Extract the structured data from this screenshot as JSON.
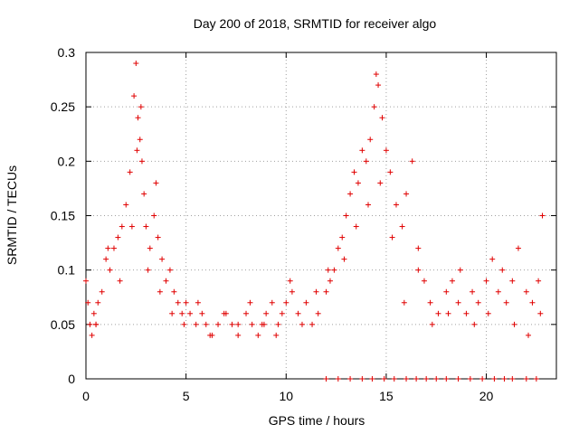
{
  "chart_data": {
    "type": "scatter",
    "title": "Day 200 of 2018, SRMTID for receiver algo",
    "xlabel": "GPS time / hours",
    "ylabel": "SRMTID / TECUs",
    "xlim": [
      0,
      23.5
    ],
    "ylim": [
      0,
      0.3
    ],
    "x_ticks": [
      0,
      5,
      10,
      15,
      20
    ],
    "x_tick_labels": [
      "0",
      "5",
      "10",
      "15",
      "20"
    ],
    "y_ticks": [
      0,
      0.05,
      0.1,
      0.15,
      0.2,
      0.25,
      0.3
    ],
    "y_tick_labels": [
      "0",
      "0.05",
      "0.1",
      "0.15",
      "0.2",
      "0.25",
      "0.3"
    ],
    "grid": true,
    "marker": "+",
    "color": "#e00000",
    "series": [
      {
        "name": "SRMTID",
        "x": [
          0.0,
          0.1,
          0.2,
          0.3,
          0.4,
          0.5,
          0.6,
          0.8,
          1.0,
          1.2,
          1.4,
          1.6,
          1.8,
          2.0,
          2.2,
          2.4,
          2.5,
          2.6,
          2.7,
          2.8,
          2.9,
          3.0,
          3.2,
          3.4,
          3.5,
          3.6,
          3.8,
          4.0,
          4.2,
          4.4,
          4.6,
          4.8,
          5.0,
          5.2,
          5.5,
          5.8,
          6.0,
          6.3,
          6.6,
          7.0,
          7.3,
          7.6,
          8.0,
          8.3,
          8.6,
          8.8,
          9.0,
          9.3,
          9.6,
          9.8,
          10.0,
          10.3,
          10.6,
          11.0,
          11.3,
          11.6,
          12.0,
          12.2,
          12.4,
          12.6,
          12.8,
          13.0,
          13.2,
          13.4,
          13.6,
          13.8,
          14.0,
          14.2,
          14.4,
          14.5,
          14.6,
          14.8,
          15.0,
          15.2,
          15.5,
          15.8,
          16.0,
          16.3,
          16.6,
          16.9,
          17.2,
          17.6,
          18.0,
          18.3,
          18.6,
          19.0,
          19.3,
          19.6,
          20.0,
          20.3,
          20.6,
          21.0,
          21.3,
          21.6,
          22.0,
          22.3,
          22.6,
          22.8,
          0.5,
          1.1,
          1.7,
          2.3,
          2.55,
          2.75,
          3.1,
          3.7,
          4.3,
          4.9,
          5.6,
          6.2,
          6.9,
          7.6,
          8.2,
          8.9,
          9.5,
          10.2,
          10.8,
          11.5,
          12.1,
          12.9,
          13.5,
          14.1,
          14.7,
          15.3,
          15.9,
          16.6,
          17.3,
          18.1,
          18.7,
          19.4,
          20.1,
          20.8,
          21.4,
          22.1,
          22.7,
          12.0,
          12.6,
          13.2,
          13.8,
          14.3,
          14.9,
          15.4,
          16.0,
          16.5,
          17.0,
          17.5,
          18.0,
          18.6,
          19.2,
          19.8,
          20.4,
          20.9,
          21.3,
          22.0,
          22.5
        ],
        "y": [
          0.09,
          0.07,
          0.05,
          0.04,
          0.06,
          0.05,
          0.07,
          0.08,
          0.11,
          0.1,
          0.12,
          0.13,
          0.14,
          0.16,
          0.19,
          0.26,
          0.29,
          0.24,
          0.22,
          0.2,
          0.17,
          0.14,
          0.12,
          0.15,
          0.18,
          0.13,
          0.11,
          0.09,
          0.1,
          0.08,
          0.07,
          0.06,
          0.07,
          0.06,
          0.05,
          0.06,
          0.05,
          0.04,
          0.05,
          0.06,
          0.05,
          0.04,
          0.06,
          0.05,
          0.04,
          0.05,
          0.06,
          0.07,
          0.05,
          0.06,
          0.07,
          0.08,
          0.06,
          0.07,
          0.05,
          0.06,
          0.08,
          0.09,
          0.1,
          0.12,
          0.13,
          0.15,
          0.17,
          0.19,
          0.18,
          0.21,
          0.2,
          0.22,
          0.25,
          0.28,
          0.27,
          0.24,
          0.21,
          0.19,
          0.16,
          0.14,
          0.17,
          0.2,
          0.12,
          0.09,
          0.07,
          0.06,
          0.08,
          0.09,
          0.07,
          0.06,
          0.08,
          0.07,
          0.09,
          0.11,
          0.08,
          0.07,
          0.09,
          0.12,
          0.08,
          0.07,
          0.09,
          0.15,
          0.05,
          0.12,
          0.09,
          0.14,
          0.21,
          0.25,
          0.1,
          0.08,
          0.06,
          0.05,
          0.07,
          0.04,
          0.06,
          0.05,
          0.07,
          0.05,
          0.04,
          0.09,
          0.05,
          0.08,
          0.1,
          0.11,
          0.14,
          0.16,
          0.18,
          0.13,
          0.07,
          0.1,
          0.05,
          0.06,
          0.1,
          0.05,
          0.06,
          0.1,
          0.05,
          0.04,
          0.06,
          0,
          0,
          0,
          0,
          0,
          0,
          0,
          0,
          0,
          0,
          0,
          0,
          0,
          0,
          0,
          0,
          0,
          0,
          0,
          0
        ]
      }
    ]
  }
}
